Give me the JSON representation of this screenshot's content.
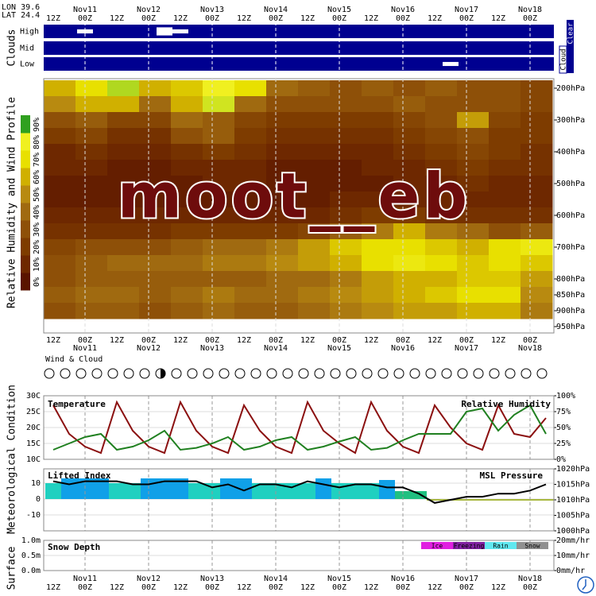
{
  "header": {
    "lon": "LON 39.6",
    "lat": "LAT 24.4"
  },
  "time_axis": {
    "days": [
      null,
      "Nov11",
      null,
      "Nov12",
      null,
      "Nov13",
      null,
      "Nov14",
      null,
      "Nov15",
      null,
      "Nov16",
      null,
      "Nov17",
      null,
      "Nov18"
    ],
    "hours": [
      "12Z",
      "00Z",
      "12Z",
      "00Z",
      "12Z",
      "00Z",
      "12Z",
      "00Z",
      "12Z",
      "00Z",
      "12Z",
      "00Z",
      "12Z",
      "00Z",
      "12Z",
      "00Z"
    ]
  },
  "watermark": "moot__eb",
  "section_titles": {
    "meteo": "Meteorological Condition",
    "surface": "Surface"
  },
  "chart_data": [
    {
      "type": "cloud_cover",
      "title": "Clouds",
      "levels": [
        "High",
        "Mid",
        "Low"
      ],
      "color": "#000090",
      "legend": [
        "Cloud",
        "Clear"
      ],
      "cover": [
        [
          0,
          0,
          30,
          0,
          0,
          0,
          0,
          60,
          30,
          0,
          0,
          0,
          0,
          0,
          0,
          0,
          0,
          0,
          0,
          0,
          0,
          0,
          0,
          0,
          0,
          0,
          0,
          0,
          0,
          0,
          0,
          0
        ],
        [
          0,
          0,
          0,
          0,
          0,
          0,
          0,
          0,
          0,
          0,
          0,
          0,
          0,
          0,
          0,
          0,
          0,
          0,
          0,
          0,
          0,
          0,
          0,
          0,
          0,
          0,
          0,
          0,
          0,
          0,
          0,
          0
        ],
        [
          0,
          0,
          0,
          0,
          0,
          0,
          0,
          0,
          0,
          0,
          0,
          0,
          0,
          0,
          0,
          0,
          0,
          0,
          0,
          0,
          0,
          0,
          0,
          0,
          0,
          30,
          0,
          0,
          0,
          0,
          0,
          0
        ]
      ]
    },
    {
      "type": "heatmap",
      "title": "Relative Humidity and Wind Profile",
      "levels": [
        200,
        250,
        300,
        350,
        400,
        450,
        500,
        550,
        600,
        650,
        700,
        750,
        800,
        850,
        900
      ],
      "values": [
        [
          60,
          70,
          90,
          60,
          65,
          80,
          70,
          40,
          35,
          30,
          35,
          30,
          35,
          30,
          30,
          25
        ],
        [
          50,
          60,
          60,
          40,
          60,
          85,
          40,
          30,
          30,
          30,
          30,
          35,
          30,
          30,
          30,
          25
        ],
        [
          30,
          35,
          25,
          25,
          40,
          35,
          25,
          20,
          20,
          20,
          20,
          25,
          30,
          55,
          25,
          20
        ],
        [
          20,
          25,
          15,
          15,
          30,
          35,
          20,
          15,
          15,
          15,
          15,
          20,
          25,
          30,
          20,
          20
        ],
        [
          10,
          15,
          10,
          10,
          15,
          20,
          15,
          10,
          10,
          10,
          10,
          15,
          20,
          25,
          20,
          15
        ],
        [
          10,
          10,
          5,
          5,
          10,
          10,
          10,
          5,
          5,
          5,
          10,
          10,
          15,
          20,
          15,
          15
        ],
        [
          5,
          5,
          5,
          5,
          5,
          10,
          10,
          5,
          5,
          5,
          5,
          10,
          10,
          15,
          10,
          10
        ],
        [
          5,
          5,
          5,
          5,
          5,
          5,
          5,
          5,
          5,
          10,
          10,
          10,
          10,
          10,
          10,
          10
        ],
        [
          10,
          10,
          10,
          10,
          10,
          10,
          10,
          10,
          10,
          15,
          20,
          20,
          15,
          15,
          15,
          15
        ],
        [
          15,
          15,
          15,
          15,
          20,
          20,
          20,
          20,
          25,
          35,
          45,
          60,
          45,
          40,
          30,
          35
        ],
        [
          25,
          30,
          30,
          30,
          35,
          40,
          40,
          45,
          55,
          65,
          70,
          70,
          65,
          60,
          70,
          75
        ],
        [
          30,
          35,
          40,
          40,
          40,
          45,
          45,
          50,
          55,
          60,
          70,
          75,
          70,
          65,
          70,
          65
        ],
        [
          30,
          35,
          35,
          35,
          35,
          35,
          35,
          40,
          40,
          45,
          55,
          60,
          60,
          65,
          65,
          55
        ],
        [
          35,
          40,
          40,
          35,
          40,
          45,
          40,
          40,
          45,
          50,
          55,
          60,
          65,
          70,
          70,
          50
        ],
        [
          30,
          35,
          35,
          30,
          35,
          40,
          35,
          35,
          40,
          45,
          50,
          55,
          55,
          60,
          60,
          45
        ]
      ],
      "ylim": [
        170,
        970
      ],
      "yticks": [
        {
          "value": 200,
          "label": "200hPa"
        },
        {
          "value": 300,
          "label": "300hPa"
        },
        {
          "value": 400,
          "label": "400hPa"
        },
        {
          "value": 500,
          "label": "500hPa"
        },
        {
          "value": 600,
          "label": "600hPa"
        },
        {
          "value": 700,
          "label": "700hPa"
        },
        {
          "value": 800,
          "label": "800hPa"
        },
        {
          "value": 850,
          "label": "850hPa"
        },
        {
          "value": 900,
          "label": "900hPa"
        },
        {
          "value": 950,
          "label": "950hPa"
        }
      ],
      "colorscale": [
        "#5a1400",
        "#6e2800",
        "#7e3c00",
        "#8e5008",
        "#a06a10",
        "#b88a10",
        "#d0b000",
        "#e8e000",
        "#f0f020",
        "#b0d820",
        "#30a020"
      ],
      "colorbar_ticks": [
        {
          "value": 0,
          "label": "0%"
        },
        {
          "value": 10,
          "label": "10%"
        },
        {
          "value": 20,
          "label": "20%"
        },
        {
          "value": 30,
          "label": "30%"
        },
        {
          "value": 40,
          "label": "40%"
        },
        {
          "value": 50,
          "label": "50%"
        },
        {
          "value": 60,
          "label": "60%"
        },
        {
          "value": 70,
          "label": "70%"
        },
        {
          "value": 80,
          "label": "80%"
        },
        {
          "value": 90,
          "label": "90%"
        }
      ]
    },
    {
      "type": "station",
      "title": "Wind & Cloud",
      "values": [
        0,
        0,
        0,
        0,
        0,
        0,
        0,
        50,
        0,
        0,
        0,
        0,
        0,
        0,
        0,
        0,
        0,
        0,
        0,
        0,
        0,
        0,
        0,
        0,
        0,
        0,
        0,
        0,
        0,
        0,
        0,
        0
      ]
    },
    {
      "type": "line",
      "ylim": [
        10,
        30
      ],
      "yticks": [
        {
          "value": 10,
          "label": "10C"
        },
        {
          "value": 15,
          "label": "15C"
        },
        {
          "value": 20,
          "label": "20C"
        },
        {
          "value": 25,
          "label": "25C"
        },
        {
          "value": 30,
          "label": "30C"
        }
      ],
      "y2lim": [
        0,
        100
      ],
      "y2ticks": [
        {
          "value": 0,
          "label": "0%"
        },
        {
          "value": 25,
          "label": "25%"
        },
        {
          "value": 50,
          "label": "50%"
        },
        {
          "value": 75,
          "label": "75%"
        },
        {
          "value": 100,
          "label": "100%"
        }
      ],
      "series": [
        {
          "name": "Temperature",
          "color": "#8b1010",
          "values": [
            27,
            18,
            14,
            12,
            28,
            19,
            14,
            12,
            28,
            19,
            14,
            12,
            27,
            19,
            14,
            12,
            28,
            19,
            15,
            12,
            28,
            19,
            14,
            12,
            27,
            20,
            15,
            13,
            27,
            18,
            17,
            23
          ]
        },
        {
          "name": "Relative Humidity",
          "color": "#208020",
          "axis": "y2",
          "values": [
            15,
            25,
            35,
            40,
            15,
            20,
            30,
            45,
            15,
            18,
            25,
            35,
            15,
            20,
            30,
            35,
            15,
            20,
            28,
            35,
            15,
            18,
            30,
            40,
            40,
            40,
            75,
            80,
            45,
            70,
            85,
            40
          ]
        }
      ]
    },
    {
      "type": "combo",
      "ylim": [
        -20,
        19
      ],
      "yticks": [
        10,
        0,
        -10
      ],
      "y2lim": [
        1000,
        1020
      ],
      "y2ticks": [
        {
          "value": 1000,
          "label": "1000hPa"
        },
        {
          "value": 1005,
          "label": "1005hPa"
        },
        {
          "value": 1010,
          "label": "1010hPa"
        },
        {
          "value": 1015,
          "label": "1015hPa"
        },
        {
          "value": 1020,
          "label": "1020hPa"
        }
      ],
      "series": [
        {
          "name": "Lifted Index",
          "values": [
            10,
            13,
            13,
            13,
            10,
            10,
            13,
            13,
            13,
            10,
            10,
            13,
            13,
            10,
            10,
            10,
            10,
            13,
            10,
            10,
            10,
            12,
            5,
            5,
            -1,
            -1,
            -1,
            -1,
            -1,
            -1,
            -1,
            -1
          ],
          "colors": [
            "#20d0c0",
            "#10a0e8",
            "#10a0e8",
            "#10a0e8",
            "#20d0c0",
            "#20d0c0",
            "#10a0e8",
            "#10a0e8",
            "#10a0e8",
            "#20d0c0",
            "#20d0c0",
            "#10a0e8",
            "#10a0e8",
            "#20d0c0",
            "#20d0c0",
            "#20d0c0",
            "#20d0c0",
            "#10a0e8",
            "#20d0c0",
            "#20d0c0",
            "#20d0c0",
            "#10a0e8",
            "#20c080",
            "#20c080",
            "#a8b840",
            "#a8b840",
            "#a8b840",
            "#a8b840",
            "#a8b840",
            "#a8b840",
            "#a8b840",
            "#a8b840"
          ]
        },
        {
          "name": "MSL Pressure",
          "color": "#000000",
          "axis": "y2",
          "values": [
            1016,
            1015,
            1016,
            1016,
            1016,
            1015,
            1015,
            1016,
            1016,
            1016,
            1014,
            1015,
            1013,
            1015,
            1015,
            1014,
            1016,
            1015,
            1014,
            1015,
            1015,
            1014,
            1014,
            1012,
            1009,
            1010,
            1011,
            1011,
            1012,
            1012,
            1013,
            1015
          ]
        }
      ]
    },
    {
      "type": "snow",
      "title": "Snow Depth",
      "ylim": [
        0,
        1
      ],
      "yticks": [
        {
          "value": 0,
          "label": "0.0m"
        },
        {
          "value": 0.5,
          "label": "0.5m"
        },
        {
          "value": 1,
          "label": "1.0m"
        }
      ],
      "y2lim": [
        0,
        20
      ],
      "y2ticks": [
        {
          "value": 0,
          "label": "0mm/hr"
        },
        {
          "value": 10,
          "label": "10mm/hr"
        },
        {
          "value": 20,
          "label": "20mm/hr"
        }
      ],
      "precip_legend": [
        {
          "name": "Ice",
          "color": "#e020e0"
        },
        {
          "name": "Freezing",
          "color": "#8020a0"
        },
        {
          "name": "Rain",
          "color": "#60e8f0"
        },
        {
          "name": "Snow",
          "color": "#909090"
        }
      ]
    }
  ]
}
